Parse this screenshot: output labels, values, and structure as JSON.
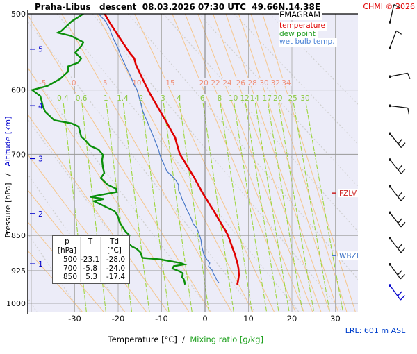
{
  "header": {
    "title": "Praha-Libus   descent  08.03.2026 07:30 UTC  49.66N,14.38E",
    "copyright": "CHMI © 2026"
  },
  "legend": {
    "title": "EMAGRAM",
    "items": [
      {
        "label": "temperature",
        "color": "#e00000"
      },
      {
        "label": "dew point",
        "color": "#1a9a1a"
      },
      {
        "label": "wet bulb temp.",
        "color": "#4d84d6"
      }
    ]
  },
  "axes": {
    "y_label_pressure": "Pressure [hPa]",
    "y_label_separator": "/",
    "y_label_altitude": "Altitude [km]",
    "x_label_temperature": "Temperature [°C]",
    "x_label_separator": "  /  ",
    "x_label_mixing": "Mixing ratio [g/kg]"
  },
  "footer": {
    "lrl": "LRL: 601 m ASL"
  },
  "chart_data": {
    "type": "line",
    "title": "EMAGRAM",
    "station": "Praha-Libus",
    "sounding": "descent",
    "datetime": "08.03.2026 07:30 UTC",
    "location": "49.66N,14.38E",
    "xlabel": "Temperature [°C] / Mixing ratio [g/kg]",
    "ylabel": "Pressure [hPa] / Altitude [km]",
    "x_ticks_c": [
      -30,
      -20,
      -10,
      0,
      10,
      20,
      30
    ],
    "pressure_ticks_hpa": [
      500,
      600,
      700,
      850,
      925,
      1000
    ],
    "altitude_ticks": [
      {
        "km": 5,
        "p": 544
      },
      {
        "km": 4,
        "p": 623
      },
      {
        "km": 3,
        "p": 707
      },
      {
        "km": 2,
        "p": 807
      },
      {
        "km": 1,
        "p": 910
      }
    ],
    "isotherms_c": [
      -40,
      -30,
      -20,
      -10,
      0,
      10,
      20,
      30
    ],
    "dry_adiabats": {
      "theta_c": [
        -40,
        -30,
        -20,
        -10,
        0,
        10,
        20,
        30,
        40,
        50,
        60,
        70,
        80
      ]
    },
    "wet_adiabats": {
      "label_row_p": 590,
      "lines": [
        {
          "tw": -30,
          "t600": -73.8
        },
        {
          "tw": -25,
          "t600": -66.4
        },
        {
          "tw": -20,
          "t600": -59.2
        },
        {
          "tw": -15,
          "t600": -52.0
        },
        {
          "tw": -10,
          "t600": -44.8
        },
        {
          "tw": -5,
          "t600": -37.4,
          "label": "-5"
        },
        {
          "tw": 0,
          "t600": -30.2,
          "label": "0"
        },
        {
          "tw": 5,
          "t600": -23.0,
          "label": "5"
        },
        {
          "tw": 10,
          "t600": -15.7,
          "label": "10"
        },
        {
          "tw": 15,
          "t600": -8.0,
          "label": "15"
        },
        {
          "tw": 20,
          "t600": -0.3,
          "label": "20"
        },
        {
          "tw": 22,
          "t600": 2.4,
          "label": "22"
        },
        {
          "tw": 24,
          "t600": 5.1,
          "label": "24"
        },
        {
          "tw": 26,
          "t600": 8.2,
          "label": "26"
        },
        {
          "tw": 28,
          "t600": 10.9,
          "label": "28"
        },
        {
          "tw": 30,
          "t600": 13.6,
          "label": "30"
        },
        {
          "tw": 32,
          "t600": 16.2,
          "label": "32"
        },
        {
          "tw": 34,
          "t600": 18.7,
          "label": "34"
        }
      ]
    },
    "mixing_ratio_lines": {
      "label_row_p": 612,
      "values": [
        0.4,
        0.6,
        1,
        1.4,
        2,
        3,
        4,
        6,
        8,
        10,
        12,
        14,
        17,
        20,
        25,
        30
      ],
      "labels": [
        "0.4",
        "0.6",
        "1",
        "1.4",
        "2",
        "3",
        "4",
        "6",
        "8",
        "10",
        "12",
        "14",
        "17",
        "20",
        "25",
        "30"
      ]
    },
    "series": [
      {
        "id": "wet-bulb",
        "name": "wet bulb temp.",
        "color": "#4878c8",
        "width": 1.2,
        "points": [
          [
            500,
            -24.5
          ],
          [
            509,
            -22.9
          ],
          [
            519,
            -21.9
          ],
          [
            528,
            -21.3
          ],
          [
            534,
            -20.8
          ],
          [
            543,
            -20.0
          ],
          [
            551,
            -19.5
          ],
          [
            561,
            -18.7
          ],
          [
            571,
            -17.9
          ],
          [
            581,
            -17.1
          ],
          [
            593,
            -16.3
          ],
          [
            599,
            -15.7
          ],
          [
            610,
            -15.2
          ],
          [
            621,
            -14.7
          ],
          [
            630,
            -14.4
          ],
          [
            638,
            -13.9
          ],
          [
            647,
            -13.3
          ],
          [
            656,
            -12.8
          ],
          [
            664,
            -12.3
          ],
          [
            674,
            -11.7
          ],
          [
            683,
            -11.2
          ],
          [
            692,
            -10.7
          ],
          [
            701,
            -10.4
          ],
          [
            710,
            -9.9
          ],
          [
            719,
            -9.3
          ],
          [
            729,
            -8.8
          ],
          [
            736,
            -7.8
          ],
          [
            741,
            -7.2
          ],
          [
            745,
            -6.7
          ],
          [
            753,
            -6.1
          ],
          [
            763,
            -6.1
          ],
          [
            771,
            -5.6
          ],
          [
            779,
            -5.3
          ],
          [
            787,
            -4.8
          ],
          [
            797,
            -4.3
          ],
          [
            807,
            -3.7
          ],
          [
            816,
            -3.2
          ],
          [
            827,
            -2.7
          ],
          [
            835,
            -1.9
          ],
          [
            842,
            -1.6
          ],
          [
            851,
            -1.2
          ],
          [
            861,
            -0.9
          ],
          [
            871,
            -0.8
          ],
          [
            878,
            -0.6
          ],
          [
            889,
            -0.3
          ],
          [
            900,
            0.4
          ],
          [
            908,
            1.1
          ],
          [
            915,
            0.8
          ],
          [
            923,
            1.6
          ],
          [
            931,
            1.9
          ],
          [
            939,
            2.4
          ],
          [
            946,
            2.7
          ],
          [
            952,
            3.2
          ]
        ]
      },
      {
        "id": "dew-point",
        "name": "dew point",
        "color": "#0a8f0a",
        "width": 2.4,
        "points": [
          [
            500,
            -28.0
          ],
          [
            509,
            -30.7
          ],
          [
            521,
            -33.1
          ],
          [
            523,
            -33.9
          ],
          [
            527,
            -30.9
          ],
          [
            535,
            -28.0
          ],
          [
            540,
            -28.5
          ],
          [
            549,
            -29.9
          ],
          [
            556,
            -28.5
          ],
          [
            562,
            -29.2
          ],
          [
            567,
            -31.5
          ],
          [
            574,
            -31.5
          ],
          [
            584,
            -33.3
          ],
          [
            594,
            -36.2
          ],
          [
            600,
            -39.8
          ],
          [
            609,
            -37.9
          ],
          [
            624,
            -37.3
          ],
          [
            632,
            -36.8
          ],
          [
            640,
            -35.5
          ],
          [
            645,
            -34.7
          ],
          [
            650,
            -30.7
          ],
          [
            655,
            -29.1
          ],
          [
            671,
            -28.5
          ],
          [
            677,
            -27.5
          ],
          [
            686,
            -26.4
          ],
          [
            692,
            -24.5
          ],
          [
            701,
            -23.5
          ],
          [
            710,
            -23.7
          ],
          [
            722,
            -23.5
          ],
          [
            732,
            -23.2
          ],
          [
            741,
            -24.0
          ],
          [
            747,
            -23.2
          ],
          [
            753,
            -22.4
          ],
          [
            760,
            -20.5
          ],
          [
            766,
            -20.3
          ],
          [
            775,
            -26.4
          ],
          [
            779,
            -23.3
          ],
          [
            783,
            -25.6
          ],
          [
            788,
            -24.3
          ],
          [
            802,
            -20.8
          ],
          [
            813,
            -20.0
          ],
          [
            823,
            -19.7
          ],
          [
            841,
            -18.4
          ],
          [
            850,
            -17.4
          ],
          [
            863,
            -18.1
          ],
          [
            873,
            -16.8
          ],
          [
            878,
            -15.7
          ],
          [
            885,
            -14.9
          ],
          [
            897,
            -14.4
          ],
          [
            900,
            -10.4
          ],
          [
            908,
            -5.6
          ],
          [
            911,
            -4.8
          ],
          [
            915,
            -7.2
          ],
          [
            920,
            -7.5
          ],
          [
            926,
            -5.9
          ],
          [
            931,
            -5.1
          ],
          [
            939,
            -5.3
          ],
          [
            944,
            -4.9
          ],
          [
            950,
            -4.7
          ],
          [
            956,
            -4.6
          ]
        ]
      },
      {
        "id": "temperature",
        "name": "temperature",
        "color": "#e00000",
        "width": 2.6,
        "points": [
          [
            500,
            -23.1
          ],
          [
            510,
            -22.0
          ],
          [
            520,
            -20.8
          ],
          [
            530,
            -19.6
          ],
          [
            540,
            -18.4
          ],
          [
            550,
            -17.2
          ],
          [
            556,
            -16.3
          ],
          [
            565,
            -15.9
          ],
          [
            575,
            -15.1
          ],
          [
            585,
            -14.3
          ],
          [
            595,
            -13.5
          ],
          [
            605,
            -12.7
          ],
          [
            615,
            -11.8
          ],
          [
            625,
            -10.9
          ],
          [
            635,
            -10.0
          ],
          [
            645,
            -9.1
          ],
          [
            655,
            -8.3
          ],
          [
            665,
            -7.5
          ],
          [
            672,
            -6.9
          ],
          [
            680,
            -6.6
          ],
          [
            690,
            -6.2
          ],
          [
            700,
            -5.8
          ],
          [
            710,
            -4.9
          ],
          [
            720,
            -4.1
          ],
          [
            730,
            -3.3
          ],
          [
            740,
            -2.5
          ],
          [
            750,
            -1.8
          ],
          [
            760,
            -1.1
          ],
          [
            770,
            -0.4
          ],
          [
            780,
            0.4
          ],
          [
            790,
            1.1
          ],
          [
            800,
            1.9
          ],
          [
            810,
            2.6
          ],
          [
            820,
            3.3
          ],
          [
            830,
            4.0
          ],
          [
            840,
            4.7
          ],
          [
            850,
            5.3
          ],
          [
            860,
            5.7
          ],
          [
            870,
            6.1
          ],
          [
            880,
            6.5
          ],
          [
            890,
            6.9
          ],
          [
            900,
            7.2
          ],
          [
            910,
            7.5
          ],
          [
            920,
            7.7
          ],
          [
            935,
            7.8
          ],
          [
            948,
            7.6
          ],
          [
            956,
            7.4
          ]
        ]
      }
    ],
    "markers": [
      {
        "label": "FZLV",
        "p": 768,
        "color": "#cc2222"
      },
      {
        "label": "WBZL",
        "p": 892,
        "color": "#3a6fc4"
      }
    ],
    "wind_barbs": {
      "x": 561,
      "items": [
        {
          "p": 510,
          "dir": -77,
          "feather": 27,
          "n": 1
        },
        {
          "p": 542,
          "dir": -69,
          "feather": 35,
          "n": 1
        },
        {
          "p": 581,
          "dir": -11,
          "feather": 68,
          "n": 1
        },
        {
          "p": 623,
          "dir": 7,
          "feather": 80,
          "n": 1
        },
        {
          "p": 666,
          "dir": 51,
          "feather": -51,
          "n": 2
        },
        {
          "p": 709,
          "dir": 51,
          "feather": -51,
          "n": 2
        },
        {
          "p": 756,
          "dir": 52,
          "feather": -49,
          "n": 2
        },
        {
          "p": 805,
          "dir": 52,
          "feather": -49,
          "n": 2
        },
        {
          "p": 856,
          "dir": 52,
          "feather": -49,
          "n": 2
        },
        {
          "p": 911,
          "dir": 54,
          "feather": -47,
          "n": 2
        },
        {
          "p": 958,
          "dir": 54,
          "feather": -47,
          "n": 2,
          "color": "#0000cc"
        }
      ]
    },
    "surface_table": {
      "headers": [
        "p [hPa]",
        "T",
        "Td [°C]"
      ],
      "rows": [
        [
          "500",
          "-23.1",
          "-28.0"
        ],
        [
          "700",
          "-5.8",
          "-24.0"
        ],
        [
          "850",
          "5.3",
          "-17.4"
        ]
      ]
    },
    "colors": {
      "plot_bg": "#ececf8",
      "grid": "#999999",
      "isotherm": "#b3b3b3",
      "isotherm_zero": "#777777",
      "dry_adiabat": "#cfcfcf",
      "wet_adiabat": "#f6c68c",
      "wet_adiabat_label": "#ef9078",
      "mixing_line": "#9ed63e",
      "mixing_label": "#8bc940",
      "altitude": "#0000cd",
      "barb": "#111111",
      "frame": "#000000",
      "tick_text": "#111111"
    }
  }
}
